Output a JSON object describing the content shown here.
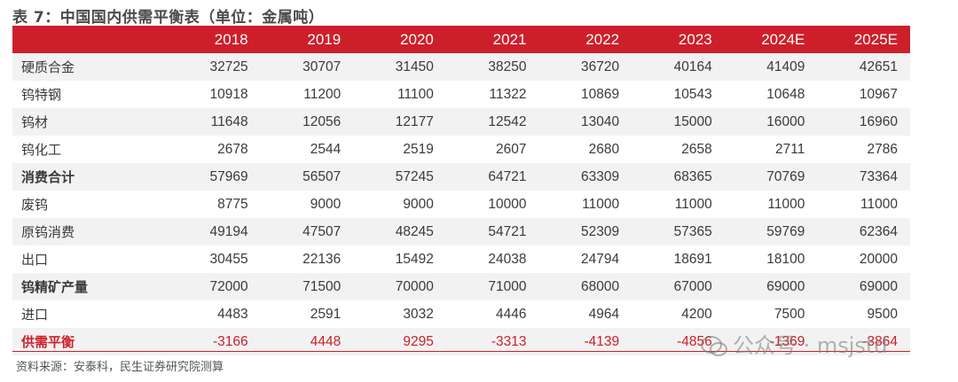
{
  "title": "表 7：中国国内供需平衡表（单位：金属吨）",
  "header": [
    "",
    "2018",
    "2019",
    "2020",
    "2021",
    "2022",
    "2023",
    "2024E",
    "2025E"
  ],
  "rows": [
    {
      "label": "硬质合金",
      "values": [
        "32725",
        "30707",
        "31450",
        "38250",
        "36720",
        "40164",
        "41409",
        "42651"
      ],
      "bold": false
    },
    {
      "label": "钨特钢",
      "values": [
        "10918",
        "11200",
        "11100",
        "11322",
        "10869",
        "10543",
        "10648",
        "10967"
      ],
      "bold": false
    },
    {
      "label": "钨材",
      "values": [
        "11648",
        "12056",
        "12177",
        "12542",
        "13040",
        "15000",
        "16000",
        "16960"
      ],
      "bold": false
    },
    {
      "label": "钨化工",
      "values": [
        "2678",
        "2544",
        "2519",
        "2607",
        "2680",
        "2658",
        "2711",
        "2786"
      ],
      "bold": false
    },
    {
      "label": "消费合计",
      "values": [
        "57969",
        "56507",
        "57245",
        "64721",
        "63309",
        "68365",
        "70769",
        "73364"
      ],
      "bold": true
    },
    {
      "label": "废钨",
      "values": [
        "8775",
        "9000",
        "9000",
        "10000",
        "11000",
        "11000",
        "11000",
        "11000"
      ],
      "bold": false
    },
    {
      "label": "原钨消费",
      "values": [
        "49194",
        "47507",
        "48245",
        "54721",
        "52309",
        "57365",
        "59769",
        "62364"
      ],
      "bold": false
    },
    {
      "label": "出口",
      "values": [
        "30455",
        "22136",
        "15492",
        "24038",
        "24794",
        "18691",
        "18100",
        "20000"
      ],
      "bold": false
    },
    {
      "label": "钨精矿产量",
      "values": [
        "72000",
        "71500",
        "70000",
        "71000",
        "68000",
        "67000",
        "69000",
        "69000"
      ],
      "bold": true
    },
    {
      "label": "进口",
      "values": [
        "4483",
        "2591",
        "3032",
        "4446",
        "4964",
        "4200",
        "7500",
        "9500"
      ],
      "bold": false
    },
    {
      "label": "供需平衡",
      "values": [
        "-3166",
        "4448",
        "9295",
        "-3313",
        "-4139",
        "-4856",
        "-1369",
        "-3864"
      ],
      "bold": true,
      "balance": true
    }
  ],
  "source": "资料来源：安泰科，民生证券研究院测算",
  "watermark": "公众号 · msjstd",
  "colors": {
    "accent": "#cd1f2a"
  }
}
